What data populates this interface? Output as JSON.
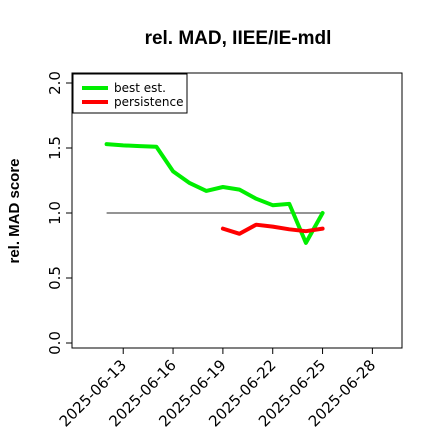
{
  "chart_data": {
    "type": "line",
    "title": "rel. MAD, IIEE/IE-mdl",
    "xlabel": "",
    "ylabel": "rel. MAD score",
    "x_ticks": [
      "2025-06-13",
      "2025-06-16",
      "2025-06-19",
      "2025-06-22",
      "2025-06-25",
      "2025-06-28"
    ],
    "xlim": [
      "2025-06-11",
      "2025-06-29"
    ],
    "ylim": [
      0.0,
      2.0
    ],
    "y_ticks": [
      "0.0",
      "0.5",
      "1.0",
      "1.5",
      "2.0"
    ],
    "reference_line": {
      "y": 1.0,
      "x_from": "2025-06-12",
      "x_to": "2025-06-25",
      "color": "#555555"
    },
    "legend": {
      "position": "top-left",
      "entries": [
        "best est.",
        "persistence"
      ]
    },
    "series": [
      {
        "name": "best est.",
        "color": "#00ee00",
        "points": [
          [
            "2025-06-12",
            1.53
          ],
          [
            "2025-06-13",
            1.52
          ],
          [
            "2025-06-14",
            1.515
          ],
          [
            "2025-06-15",
            1.51
          ],
          [
            "2025-06-16",
            1.32
          ],
          [
            "2025-06-17",
            1.23
          ],
          [
            "2025-06-18",
            1.17
          ],
          [
            "2025-06-19",
            1.2
          ],
          [
            "2025-06-20",
            1.18
          ],
          [
            "2025-06-21",
            1.11
          ],
          [
            "2025-06-22",
            1.06
          ],
          [
            "2025-06-23",
            1.07
          ],
          [
            "2025-06-24",
            0.77
          ],
          [
            "2025-06-25",
            1.0
          ]
        ]
      },
      {
        "name": "persistence",
        "color": "#ff0000",
        "points": [
          [
            "2025-06-19",
            0.88
          ],
          [
            "2025-06-20",
            0.84
          ],
          [
            "2025-06-21",
            0.91
          ],
          [
            "2025-06-22",
            0.895
          ],
          [
            "2025-06-23",
            0.875
          ],
          [
            "2025-06-24",
            0.86
          ],
          [
            "2025-06-25",
            0.88
          ]
        ]
      }
    ]
  }
}
